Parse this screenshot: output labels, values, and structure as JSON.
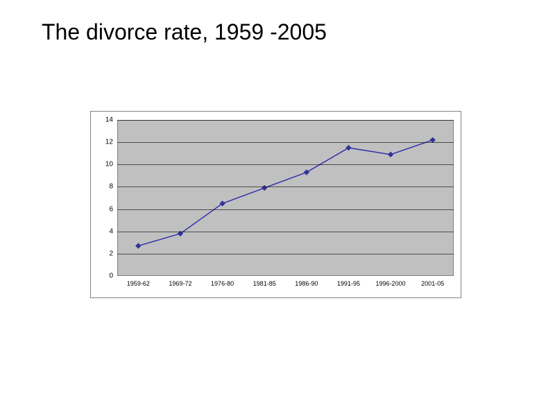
{
  "title": "The divorce rate, 1959 -2005",
  "title_fontsize": 32,
  "title_color": "#000000",
  "chart": {
    "type": "line",
    "categories": [
      "1959-62",
      "1969-72",
      "1976-80",
      "1981-85",
      "1986-90",
      "1991-95",
      "1996-2000",
      "2001-05"
    ],
    "values": [
      2.7,
      3.8,
      6.5,
      7.9,
      9.3,
      11.5,
      10.9,
      12.2
    ],
    "line_color": "#3333aa",
    "marker_color": "#333399",
    "marker_style": "diamond",
    "marker_size": 7,
    "line_width": 1.5,
    "ylim": [
      0,
      14
    ],
    "ytick_step": 2,
    "yticks": [
      0,
      2,
      4,
      6,
      8,
      10,
      12,
      14
    ],
    "plot_background_color": "#c0c0c0",
    "outer_background_color": "#ffffff",
    "grid_color": "#000000",
    "border_color": "#808080",
    "tick_fontsize": 10,
    "xtick_fontsize": 9
  }
}
